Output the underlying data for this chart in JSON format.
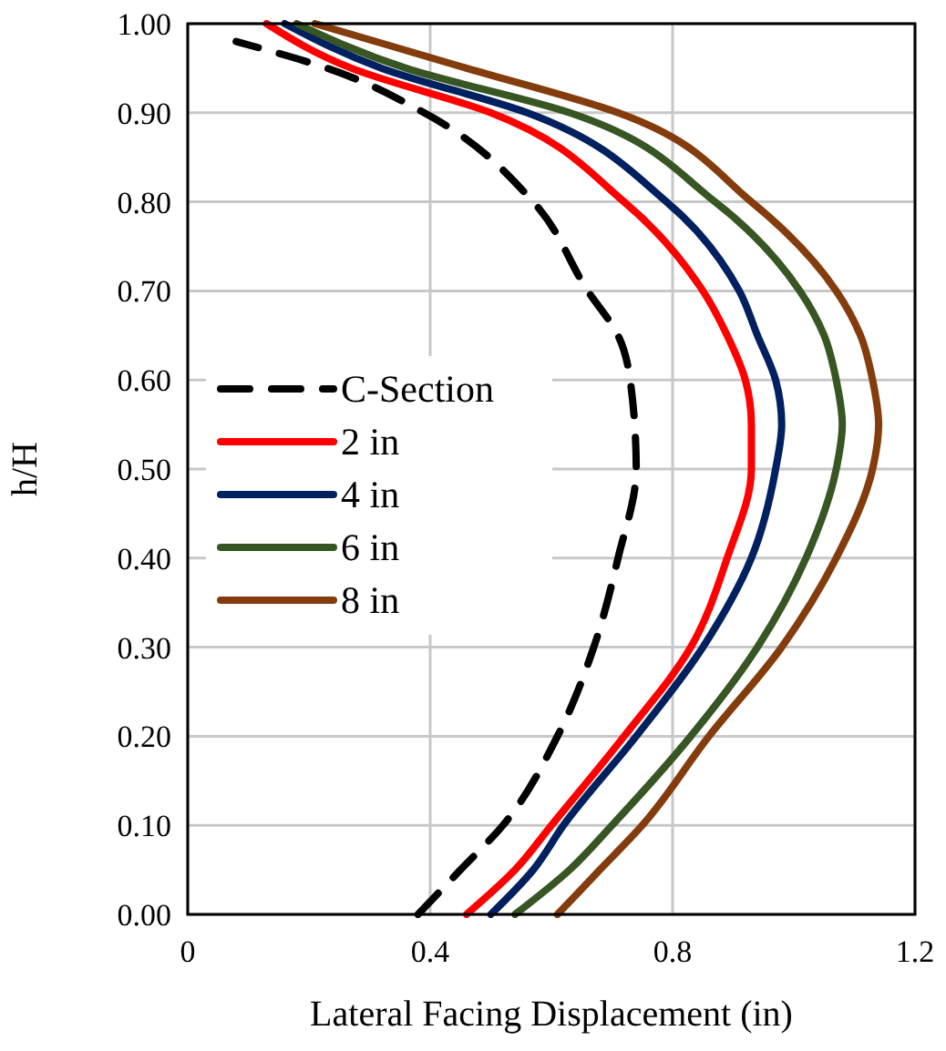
{
  "chart_data": {
    "type": "line",
    "xlabel": "Lateral Facing Displacement  (in)",
    "ylabel": "h/H",
    "xlim": [
      0,
      1.2
    ],
    "xticks": [
      0,
      0.4,
      0.8,
      1.2
    ],
    "ylim": [
      0,
      1
    ],
    "yticks": [
      {
        "value": 0,
        "label": "0.00"
      },
      {
        "value": 0.1,
        "label": "0.10"
      },
      {
        "value": 0.2,
        "label": "0.20"
      },
      {
        "value": 0.3,
        "label": "0.30"
      },
      {
        "value": 0.4,
        "label": "0.40"
      },
      {
        "value": 0.5,
        "label": "0.50"
      },
      {
        "value": 0.6,
        "label": "0.60"
      },
      {
        "value": 0.7,
        "label": "0.70"
      },
      {
        "value": 0.8,
        "label": "0.80"
      },
      {
        "value": 0.9,
        "label": "0.90"
      },
      {
        "value": 1,
        "label": "1.00"
      }
    ],
    "grid": true,
    "legend": "left",
    "marker": "none",
    "series": [
      {
        "name": "C-Section",
        "color": "#000000",
        "line_style": "dashed",
        "x": [
          0.38,
          0.45,
          0.52,
          0.61,
          0.67,
          0.71,
          0.74,
          0.73,
          0.71,
          0.66,
          0.57,
          0.39,
          0.23,
          0.08
        ],
        "values": [
          0,
          0.05,
          0.1,
          0.2,
          0.3,
          0.4,
          0.5,
          0.6,
          0.65,
          0.7,
          0.8,
          0.9,
          0.95,
          0.98
        ]
      },
      {
        "name": "2 in",
        "color": "#ff0000",
        "line_style": "solid",
        "x": [
          0.46,
          0.54,
          0.6,
          0.72,
          0.83,
          0.89,
          0.93,
          0.93,
          0.92,
          0.89,
          0.85,
          0.72,
          0.5,
          0.27,
          0.13
        ],
        "values": [
          0,
          0.05,
          0.1,
          0.2,
          0.3,
          0.4,
          0.5,
          0.55,
          0.6,
          0.65,
          0.7,
          0.8,
          0.9,
          0.95,
          1
        ]
      },
      {
        "name": "4 in",
        "color": "#002060",
        "line_style": "solid",
        "x": [
          0.5,
          0.57,
          0.62,
          0.74,
          0.85,
          0.93,
          0.97,
          0.98,
          0.97,
          0.94,
          0.91,
          0.79,
          0.56,
          0.32,
          0.16
        ],
        "values": [
          0,
          0.05,
          0.1,
          0.2,
          0.3,
          0.4,
          0.5,
          0.55,
          0.6,
          0.65,
          0.7,
          0.8,
          0.9,
          0.95,
          1
        ]
      },
      {
        "name": "6 in",
        "color": "#375623",
        "line_style": "solid",
        "x": [
          0.54,
          0.63,
          0.7,
          0.83,
          0.94,
          1.02,
          1.07,
          1.08,
          1.07,
          1.05,
          1.01,
          0.87,
          0.63,
          0.36,
          0.18
        ],
        "values": [
          0,
          0.05,
          0.1,
          0.2,
          0.3,
          0.4,
          0.5,
          0.55,
          0.6,
          0.65,
          0.7,
          0.8,
          0.9,
          0.95,
          1
        ]
      },
      {
        "name": "8 in",
        "color": "#843c0c",
        "line_style": "solid",
        "x": [
          0.61,
          0.68,
          0.75,
          0.86,
          0.98,
          1.07,
          1.13,
          1.14,
          1.13,
          1.11,
          1.07,
          0.93,
          0.71,
          0.46,
          0.21
        ],
        "values": [
          0,
          0.05,
          0.1,
          0.2,
          0.3,
          0.4,
          0.5,
          0.55,
          0.6,
          0.65,
          0.7,
          0.8,
          0.9,
          0.95,
          1
        ]
      }
    ]
  }
}
